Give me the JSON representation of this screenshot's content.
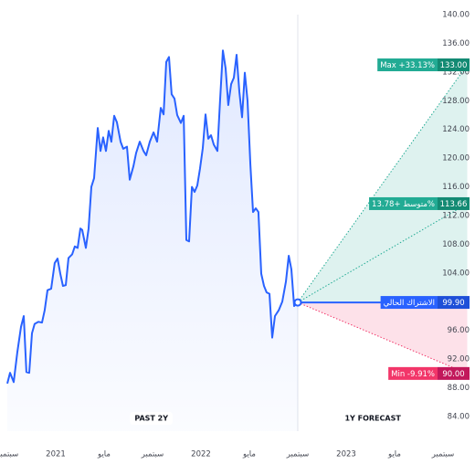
{
  "chart_data": {
    "type": "forecast",
    "xlim": [
      0,
      38
    ],
    "xticks": [
      {
        "value": 0,
        "label": "سبتمبر"
      },
      {
        "value": 4,
        "label": "2021"
      },
      {
        "value": 8,
        "label": "مايو"
      },
      {
        "value": 12,
        "label": "سبتمبر"
      },
      {
        "value": 16,
        "label": "2022"
      },
      {
        "value": 20,
        "label": "مايو"
      },
      {
        "value": 24,
        "label": "سبتمبر"
      },
      {
        "value": 28,
        "label": "2023"
      },
      {
        "value": 32,
        "label": "مايو"
      },
      {
        "value": 36,
        "label": "سبتمبر"
      }
    ],
    "ylim": [
      84,
      140
    ],
    "yticks": [
      {
        "value": 84,
        "label": "84.00"
      },
      {
        "value": 88,
        "label": "88.00"
      },
      {
        "value": 92,
        "label": "92.00"
      },
      {
        "value": 96,
        "label": "96.00"
      },
      {
        "value": 100,
        "label": "100.00"
      },
      {
        "value": 104,
        "label": "104.00"
      },
      {
        "value": 108,
        "label": "108.00"
      },
      {
        "value": 112,
        "label": "112.00"
      },
      {
        "value": 116,
        "label": "116.00"
      },
      {
        "value": 120,
        "label": "120.00"
      },
      {
        "value": 124,
        "label": "124.00"
      },
      {
        "value": 128,
        "label": "128.00"
      },
      {
        "value": 132,
        "label": "132.00"
      },
      {
        "value": 136,
        "label": "136.00"
      },
      {
        "value": 140,
        "label": "140.00"
      }
    ],
    "past_label": "PAST 2Y",
    "forecast_label": "1Y FORECAST",
    "series": [
      {
        "color": "#2962ff",
        "x": [
          0,
          0.23,
          0.53,
          0.83,
          1.13,
          1.36,
          1.58,
          1.81,
          2.04,
          2.26,
          2.57,
          2.87,
          3.09,
          3.32,
          3.62,
          3.92,
          4.15,
          4.38,
          4.6,
          4.83,
          5.06,
          5.36,
          5.58,
          5.81,
          6.04,
          6.19,
          6.49,
          6.72,
          6.94,
          7.17,
          7.47,
          7.7,
          7.92,
          8.15,
          8.38,
          8.6,
          8.83,
          9.06,
          9.36,
          9.58,
          9.89,
          10.11,
          10.42,
          10.64,
          10.94,
          11.25,
          11.47,
          11.77,
          12.08,
          12.38,
          12.68,
          12.91,
          13.13,
          13.36,
          13.58,
          13.81,
          14.04,
          14.34,
          14.57,
          14.79,
          15.02,
          15.25,
          15.47,
          15.7,
          15.92,
          16.15,
          16.38,
          16.6,
          16.83,
          17.06,
          17.36,
          17.58,
          17.81,
          18.04,
          18.26,
          18.49,
          18.72,
          18.94,
          19.17,
          19.4,
          19.62,
          19.85,
          20.08,
          20.3,
          20.53,
          20.75,
          20.98,
          21.21,
          21.43,
          21.66,
          21.89,
          22.11,
          22.42,
          22.72,
          23.02,
          23.25,
          23.47,
          23.7,
          24
        ],
        "values": [
          88.6,
          90.1,
          88.8,
          93.0,
          96.5,
          98.0,
          90.2,
          90.1,
          95.6,
          96.9,
          97.2,
          97.1,
          98.8,
          101.6,
          101.8,
          105.4,
          106.0,
          103.9,
          102.2,
          102.3,
          106.1,
          106.6,
          107.7,
          107.5,
          110.2,
          110.0,
          107.5,
          110.2,
          116.0,
          117.2,
          124.2,
          121.0,
          122.9,
          121.0,
          123.8,
          122.3,
          125.9,
          125.0,
          122.3,
          121.3,
          121.6,
          117.0,
          118.9,
          120.7,
          122.3,
          121.0,
          120.4,
          122.3,
          123.6,
          122.3,
          127.0,
          126.1,
          133.4,
          134.1,
          128.9,
          128.3,
          126.0,
          124.9,
          125.9,
          108.6,
          108.4,
          116.0,
          115.3,
          116.2,
          118.5,
          121.4,
          126.1,
          122.7,
          123.2,
          121.9,
          121.0,
          128.0,
          135.0,
          132.5,
          127.4,
          130.3,
          131.2,
          134.4,
          129.3,
          125.7,
          131.9,
          128.0,
          119.1,
          112.5,
          113.0,
          112.5,
          103.9,
          102.2,
          101.3,
          101.1,
          95.0,
          98.0,
          98.8,
          100.0,
          102.8,
          106.4,
          104.5,
          99.4,
          99.9
        ]
      }
    ],
    "current": {
      "name": "الاشتراك الحالي",
      "value": 99.9,
      "value_label": "99.90",
      "color": "#2962ff"
    },
    "forecast": [
      {
        "name": "Max +33.13%",
        "value": 133,
        "value_label": "133.00",
        "color": "#22ab94"
      },
      {
        "name": "متوسط +13.78%",
        "value": 113.66,
        "value_label": "113.66",
        "color": "#22ab94"
      },
      {
        "name": "Min -9.91%",
        "value": 90,
        "value_label": "90.00",
        "color": "#f23669"
      }
    ]
  }
}
